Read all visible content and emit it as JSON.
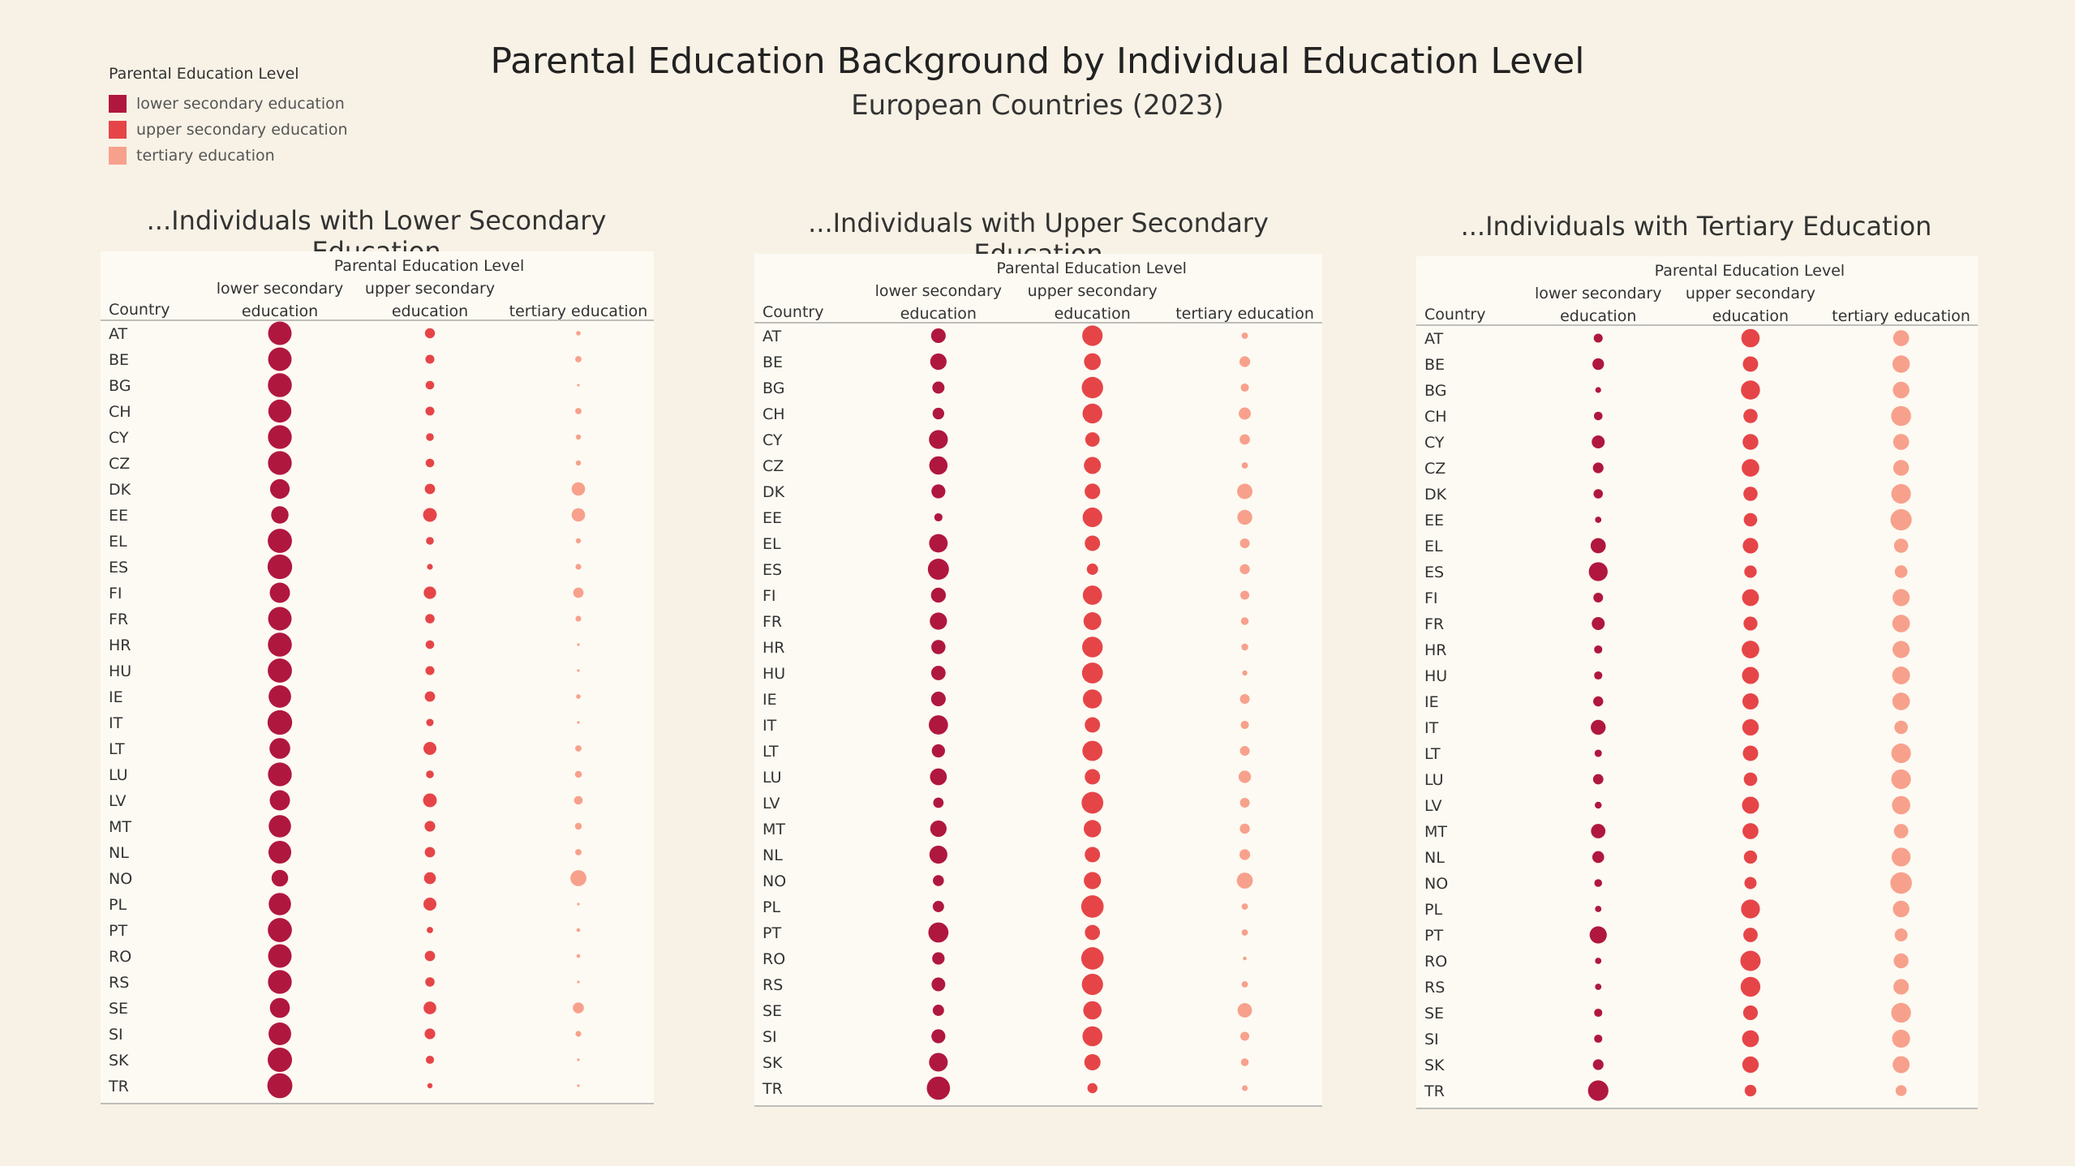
{
  "title": "Parental Education Background by Individual Education Level",
  "subtitle": "European Countries (2023)",
  "legend": {
    "title": "Parental Education Level",
    "items": [
      {
        "label": "lower secondary education",
        "color": "#b0173f"
      },
      {
        "label": "upper secondary education",
        "color": "#e64548"
      },
      {
        "label": "tertiary education",
        "color": "#f7a18c"
      }
    ]
  },
  "chart_data": [
    {
      "type": "scatter",
      "title": "...Individuals with Lower Secondary Education",
      "header": "Parental Education Level",
      "row_header": "Country",
      "columns": [
        "lower secondary education",
        "upper secondary education",
        "tertiary education"
      ],
      "colors": [
        "#b0173f",
        "#e64548",
        "#f7a18c"
      ],
      "countries": [
        "AT",
        "BE",
        "BG",
        "CH",
        "CY",
        "CZ",
        "DK",
        "EE",
        "EL",
        "ES",
        "FI",
        "FR",
        "HR",
        "HU",
        "IE",
        "IT",
        "LT",
        "LU",
        "LV",
        "MT",
        "NL",
        "NO",
        "PL",
        "PT",
        "RO",
        "RS",
        "SE",
        "SI",
        "SK",
        "TR"
      ],
      "series": [
        {
          "values": [
            82,
            82,
            85,
            79,
            84,
            84,
            57,
            45,
            87,
            90,
            61,
            82,
            85,
            87,
            75,
            90,
            64,
            84,
            61,
            74,
            77,
            41,
            74,
            86,
            82,
            84,
            59,
            76,
            88,
            93
          ]
        },
        {
          "values": [
            15,
            12,
            11,
            12,
            9,
            11,
            16,
            28,
            9,
            5,
            23,
            13,
            11,
            12,
            16,
            8,
            25,
            9,
            28,
            17,
            16,
            21,
            25,
            6,
            16,
            13,
            24,
            17,
            10,
            4
          ]
        },
        {
          "values": [
            3,
            6,
            1,
            6,
            4,
            4,
            27,
            27,
            4,
            5,
            16,
            5,
            1,
            1,
            3,
            1,
            6,
            7,
            11,
            7,
            6,
            38,
            1,
            2,
            2,
            1,
            18,
            5,
            1,
            1
          ]
        }
      ]
    },
    {
      "type": "scatter",
      "title": "...Individuals with Upper Secondary Education",
      "header": "Parental Education Level",
      "row_header": "Country",
      "columns": [
        "lower secondary education",
        "upper secondary education",
        "tertiary education"
      ],
      "colors": [
        "#b0173f",
        "#e64548",
        "#f7a18c"
      ],
      "countries": [
        "AT",
        "BE",
        "BG",
        "CH",
        "CY",
        "CZ",
        "DK",
        "EE",
        "EL",
        "ES",
        "FI",
        "FR",
        "HR",
        "HU",
        "IE",
        "IT",
        "LT",
        "LU",
        "LV",
        "MT",
        "NL",
        "NO",
        "PL",
        "PT",
        "RO",
        "RS",
        "SE",
        "SI",
        "SK",
        "TR"
      ],
      "series": [
        {
          "values": [
            32,
            40,
            22,
            20,
            53,
            50,
            29,
            10,
            51,
            66,
            33,
            44,
            30,
            31,
            32,
            55,
            26,
            42,
            16,
            40,
            48,
            18,
            19,
            60,
            23,
            28,
            19,
            29,
            52,
            80
          ]
        },
        {
          "values": [
            62,
            42,
            68,
            58,
            31,
            43,
            36,
            57,
            35,
            19,
            55,
            47,
            63,
            65,
            54,
            35,
            60,
            35,
            70,
            45,
            35,
            44,
            75,
            34,
            75,
            67,
            50,
            59,
            39,
            15
          ]
        },
        {
          "values": [
            6,
            17,
            10,
            22,
            16,
            6,
            35,
            33,
            14,
            15,
            12,
            9,
            7,
            4,
            14,
            10,
            14,
            23,
            14,
            15,
            17,
            38,
            6,
            6,
            2,
            6,
            31,
            12,
            9,
            5
          ]
        }
      ]
    },
    {
      "type": "scatter",
      "title": "...Individuals with Tertiary Education",
      "header": "Parental Education Level",
      "row_header": "Country",
      "columns": [
        "lower secondary education",
        "upper secondary education",
        "tertiary education"
      ],
      "colors": [
        "#b0173f",
        "#e64548",
        "#f7a18c"
      ],
      "countries": [
        "AT",
        "BE",
        "BG",
        "CH",
        "CY",
        "CZ",
        "DK",
        "EE",
        "EL",
        "ES",
        "FI",
        "FR",
        "HR",
        "HU",
        "IE",
        "IT",
        "LT",
        "LU",
        "LV",
        "MT",
        "NL",
        "NO",
        "PL",
        "PT",
        "RO",
        "RS",
        "SE",
        "SI",
        "SK",
        "TR"
      ],
      "series": [
        {
          "values": [
            12,
            20,
            5,
            11,
            25,
            17,
            13,
            6,
            34,
            53,
            14,
            25,
            10,
            10,
            15,
            33,
            8,
            16,
            7,
            31,
            21,
            9,
            6,
            44,
            6,
            6,
            10,
            10,
            17,
            62
          ]
        },
        {
          "values": [
            50,
            35,
            54,
            30,
            37,
            46,
            30,
            27,
            36,
            23,
            42,
            29,
            46,
            43,
            39,
            40,
            35,
            27,
            43,
            38,
            26,
            22,
            53,
            31,
            61,
            58,
            32,
            42,
            40,
            20
          ]
        },
        {
          "values": [
            38,
            45,
            41,
            59,
            38,
            37,
            57,
            67,
            30,
            24,
            44,
            46,
            44,
            47,
            46,
            27,
            57,
            57,
            50,
            31,
            53,
            69,
            41,
            25,
            33,
            36,
            58,
            48,
            43,
            18
          ]
        }
      ]
    }
  ]
}
